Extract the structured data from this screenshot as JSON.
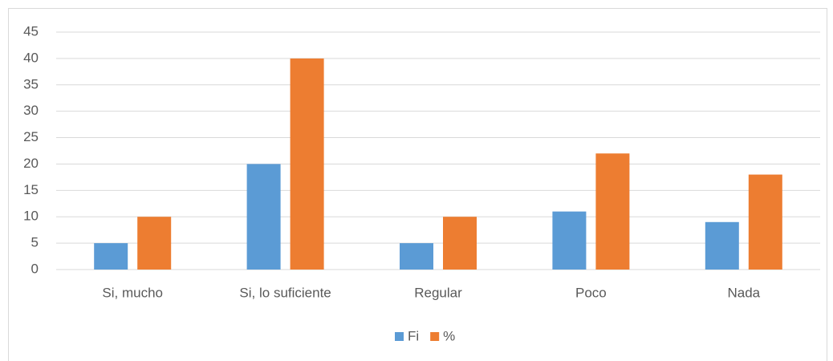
{
  "chart_data": {
    "type": "bar",
    "categories": [
      "Si, mucho",
      "Si, lo suficiente",
      "Regular",
      "Poco",
      "Nada"
    ],
    "series": [
      {
        "name": "Fi",
        "color": "#5b9bd5",
        "values": [
          5,
          20,
          5,
          11,
          9
        ]
      },
      {
        "name": "%",
        "color": "#ed7d31",
        "values": [
          10,
          40,
          10,
          22,
          18
        ]
      }
    ],
    "ylim": [
      0,
      45
    ],
    "yticks": [
      0,
      5,
      10,
      15,
      20,
      25,
      30,
      35,
      40,
      45
    ],
    "grid": true,
    "legend": "bottom"
  }
}
